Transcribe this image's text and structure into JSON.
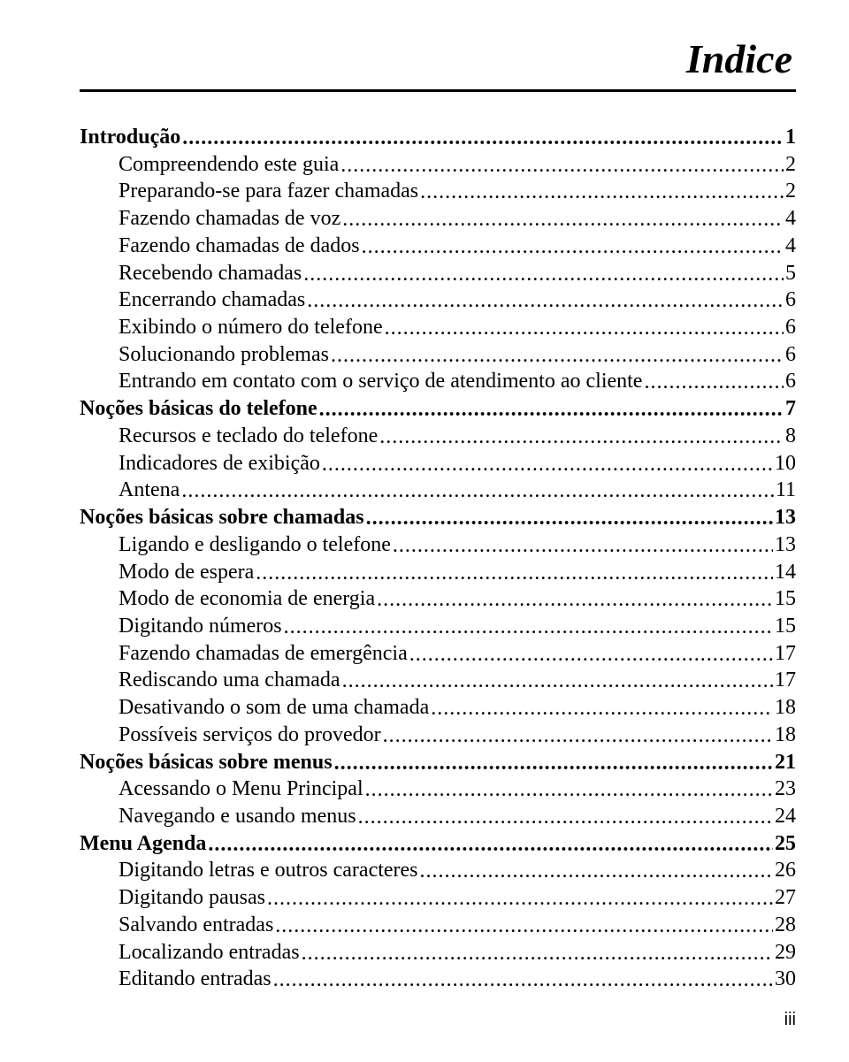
{
  "meta": {
    "title": "Indice",
    "page_label": "iii",
    "colors": {
      "text": "#000000",
      "background": "#ffffff",
      "rule": "#000000"
    },
    "fonts": {
      "body_family": "Times New Roman / Century Schoolbook serif",
      "body_size_pt": 18,
      "title_size_pt": 34,
      "title_style": "italic bold"
    }
  },
  "toc": [
    {
      "type": "section",
      "label": "Introdução",
      "page": "1"
    },
    {
      "type": "entry",
      "label": "Compreendendo este guia",
      "page": "2"
    },
    {
      "type": "entry",
      "label": "Preparando-se para fazer chamadas",
      "page": "2"
    },
    {
      "type": "entry",
      "label": "Fazendo chamadas de voz",
      "page": "4"
    },
    {
      "type": "entry",
      "label": "Fazendo chamadas de dados",
      "page": "4"
    },
    {
      "type": "entry",
      "label": "Recebendo chamadas",
      "page": "5"
    },
    {
      "type": "entry",
      "label": "Encerrando chamadas",
      "page": "6"
    },
    {
      "type": "entry",
      "label": "Exibindo o número do telefone",
      "page": "6"
    },
    {
      "type": "entry",
      "label": "Solucionando problemas",
      "page": "6"
    },
    {
      "type": "entry",
      "label": "Entrando em contato com o serviço de atendimento ao cliente",
      "page": "6"
    },
    {
      "type": "section",
      "label": "Noções básicas do telefone",
      "page": "7"
    },
    {
      "type": "entry",
      "label": "Recursos e teclado do telefone",
      "page": "8"
    },
    {
      "type": "entry",
      "label": "Indicadores de exibição",
      "page": "10"
    },
    {
      "type": "entry",
      "label": "Antena",
      "page": "11"
    },
    {
      "type": "section",
      "label": "Noções básicas sobre chamadas",
      "page": "13"
    },
    {
      "type": "entry",
      "label": "Ligando e desligando o telefone",
      "page": "13"
    },
    {
      "type": "entry",
      "label": "Modo de espera",
      "page": "14"
    },
    {
      "type": "entry",
      "label": "Modo de economia de energia",
      "page": "15"
    },
    {
      "type": "entry",
      "label": "Digitando números",
      "page": "15"
    },
    {
      "type": "entry",
      "label": "Fazendo chamadas de emergência",
      "page": "17"
    },
    {
      "type": "entry",
      "label": "Rediscando uma chamada",
      "page": "17"
    },
    {
      "type": "entry",
      "label": "Desativando o som de uma chamada",
      "page": "18"
    },
    {
      "type": "entry",
      "label": "Possíveis serviços do provedor",
      "page": "18"
    },
    {
      "type": "section",
      "label": "Noções básicas sobre menus",
      "page": "21"
    },
    {
      "type": "entry",
      "label": "Acessando o Menu Principal",
      "page": "23"
    },
    {
      "type": "entry",
      "label": "Navegando e usando menus",
      "page": "24"
    },
    {
      "type": "section",
      "label": "Menu Agenda",
      "page": "25"
    },
    {
      "type": "entry",
      "label": "Digitando letras e outros caracteres",
      "page": "26"
    },
    {
      "type": "entry",
      "label": "Digitando pausas",
      "page": "27"
    },
    {
      "type": "entry",
      "label": "Salvando entradas",
      "page": "28"
    },
    {
      "type": "entry",
      "label": "Localizando entradas",
      "page": "29"
    },
    {
      "type": "entry",
      "label": "Editando entradas",
      "page": "30"
    }
  ]
}
